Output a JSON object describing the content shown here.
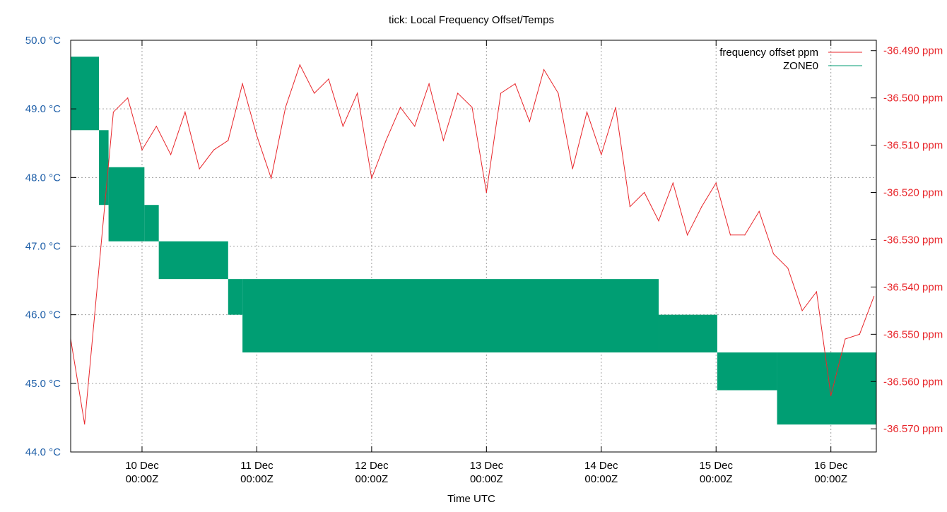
{
  "chart_data": {
    "type": "line",
    "title": "tick: Local Frequency Offset/Temps",
    "xlabel": "Time UTC",
    "xlim": [
      "Dec 09 09:05",
      "Dec 16 09:30"
    ],
    "x_ticks": [
      {
        "t": "Dec 10 00:00",
        "line1": "10 Dec",
        "line2": "00:00Z"
      },
      {
        "t": "Dec 11 00:00",
        "line1": "11 Dec",
        "line2": "00:00Z"
      },
      {
        "t": "Dec 12 00:00",
        "line1": "12 Dec",
        "line2": "00:00Z"
      },
      {
        "t": "Dec 13 00:00",
        "line1": "13 Dec",
        "line2": "00:00Z"
      },
      {
        "t": "Dec 14 00:00",
        "line1": "14 Dec",
        "line2": "00:00Z"
      },
      {
        "t": "Dec 15 00:00",
        "line1": "15 Dec",
        "line2": "00:00Z"
      },
      {
        "t": "Dec 16 00:00",
        "line1": "16 Dec",
        "line2": "00:00Z"
      }
    ],
    "y_left": {
      "ylim": [
        44.0,
        50.0
      ],
      "ticks": [
        44.0,
        45.0,
        46.0,
        47.0,
        48.0,
        49.0,
        50.0
      ],
      "tick_labels": [
        "44.0 °C",
        "45.0 °C",
        "46.0 °C",
        "47.0 °C",
        "48.0 °C",
        "49.0 °C",
        "50.0 °C"
      ],
      "color": "#1f5fa8"
    },
    "y_right": {
      "ylim": [
        -36.5749,
        -36.4878
      ],
      "ticks": [
        -36.57,
        -36.56,
        -36.55,
        -36.54,
        -36.53,
        -36.52,
        -36.51,
        -36.5,
        -36.49
      ],
      "tick_labels": [
        "-36.570 ppm",
        "-36.560 ppm",
        "-36.550 ppm",
        "-36.540 ppm",
        "-36.530 ppm",
        "-36.520 ppm",
        "-36.510 ppm",
        "-36.500 ppm",
        "-36.490 ppm"
      ],
      "color": "#e8262b"
    },
    "grid": true,
    "legend_position": "top-right",
    "series": [
      {
        "name": "frequency offset ppm",
        "axis": "right",
        "color": "#e8262b",
        "x": [
          "Dec 09 09:00",
          "Dec 09 12:00",
          "Dec 09 15:00",
          "Dec 09 18:00",
          "Dec 09 21:00",
          "Dec 10 00:00",
          "Dec 10 03:00",
          "Dec 10 06:00",
          "Dec 10 09:00",
          "Dec 10 12:00",
          "Dec 10 15:00",
          "Dec 10 18:00",
          "Dec 10 21:00",
          "Dec 11 00:00",
          "Dec 11 03:00",
          "Dec 11 06:00",
          "Dec 11 09:00",
          "Dec 11 12:00",
          "Dec 11 15:00",
          "Dec 11 18:00",
          "Dec 11 21:00",
          "Dec 12 00:00",
          "Dec 12 03:00",
          "Dec 12 06:00",
          "Dec 12 09:00",
          "Dec 12 12:00",
          "Dec 12 15:00",
          "Dec 12 18:00",
          "Dec 12 21:00",
          "Dec 13 00:00",
          "Dec 13 03:00",
          "Dec 13 06:00",
          "Dec 13 09:00",
          "Dec 13 12:00",
          "Dec 13 15:00",
          "Dec 13 18:00",
          "Dec 13 21:00",
          "Dec 14 00:00",
          "Dec 14 03:00",
          "Dec 14 06:00",
          "Dec 14 09:00",
          "Dec 14 12:00",
          "Dec 14 15:00",
          "Dec 14 18:00",
          "Dec 14 21:00",
          "Dec 15 00:00",
          "Dec 15 03:00",
          "Dec 15 06:00",
          "Dec 15 09:00",
          "Dec 15 12:00",
          "Dec 15 15:00",
          "Dec 15 18:00",
          "Dec 15 21:00",
          "Dec 16 00:00",
          "Dec 16 03:00",
          "Dec 16 06:00",
          "Dec 16 09:00"
        ],
        "values": [
          -36.551,
          -36.569,
          -36.536,
          -36.503,
          -36.5,
          -36.511,
          -36.506,
          -36.512,
          -36.503,
          -36.515,
          -36.511,
          -36.509,
          -36.497,
          -36.508,
          -36.517,
          -36.502,
          -36.493,
          -36.499,
          -36.496,
          -36.506,
          -36.499,
          -36.517,
          -36.509,
          -36.502,
          -36.506,
          -36.497,
          -36.509,
          -36.499,
          -36.502,
          -36.52,
          -36.499,
          -36.497,
          -36.505,
          -36.494,
          -36.499,
          -36.515,
          -36.503,
          -36.512,
          -36.502,
          -36.523,
          -36.52,
          -36.526,
          -36.518,
          -36.529,
          -36.523,
          -36.518,
          -36.529,
          -36.529,
          -36.524,
          -36.533,
          -36.536,
          -36.545,
          -36.541,
          -36.563,
          -36.551,
          -36.55,
          -36.542
        ]
      },
      {
        "name": "ZONE0",
        "axis": "left",
        "color": "#009e73",
        "bands": [
          {
            "from": "Dec 09 09:05",
            "to": "Dec 09 15:00",
            "min": 48.69,
            "max": 49.76
          },
          {
            "from": "Dec 09 15:00",
            "to": "Dec 09 17:00",
            "min": 47.6,
            "max": 48.69
          },
          {
            "from": "Dec 09 17:00",
            "to": "Dec 10 00:30",
            "min": 47.07,
            "max": 48.15
          },
          {
            "from": "Dec 10 00:30",
            "to": "Dec 10 03:30",
            "min": 47.07,
            "max": 47.6
          },
          {
            "from": "Dec 10 03:30",
            "to": "Dec 10 18:00",
            "min": 46.52,
            "max": 47.07
          },
          {
            "from": "Dec 10 18:00",
            "to": "Dec 10 21:00",
            "min": 46.0,
            "max": 46.52
          },
          {
            "from": "Dec 10 21:00",
            "to": "Dec 14 12:00",
            "min": 45.45,
            "max": 46.52
          },
          {
            "from": "Dec 14 12:00",
            "to": "Dec 15 00:15",
            "min": 45.45,
            "max": 46.0
          },
          {
            "from": "Dec 15 00:15",
            "to": "Dec 15 12:45",
            "min": 44.9,
            "max": 45.45
          },
          {
            "from": "Dec 15 12:45",
            "to": "Dec 16 09:30",
            "min": 44.4,
            "max": 45.45
          }
        ]
      }
    ]
  }
}
